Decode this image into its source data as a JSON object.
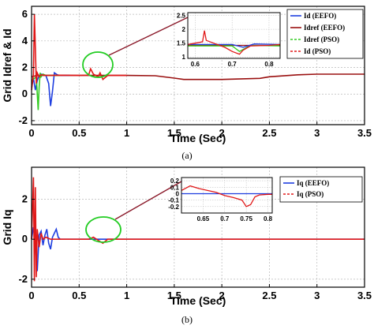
{
  "captions": {
    "a": "(a)",
    "b": "(b)"
  },
  "colors": {
    "blue": "#1f3fe0",
    "red": "#e01818",
    "darkred": "#9a1010",
    "green": "#33cc22",
    "grid": "#b8b8b8",
    "ellipse": "#22cc22",
    "callout": "#8b1a2a"
  },
  "chart_data": [
    {
      "type": "line",
      "ylabel": "Grid Idref & Id",
      "xlabel": "Time (Sec)",
      "xlim": [
        0,
        3.5
      ],
      "ylim": [
        -2.3,
        6.6
      ],
      "xticks": [
        "0",
        "0.5",
        "1",
        "1.5",
        "2",
        "2.5",
        "3",
        "3.5"
      ],
      "xtick_values": [
        0,
        0.5,
        1,
        1.5,
        2,
        2.5,
        3,
        3.5
      ],
      "yticks": [
        "-2",
        "0",
        "2",
        "4",
        "6"
      ],
      "ytick_values": [
        -2,
        0,
        2,
        4,
        6
      ],
      "grid": true,
      "legend_position": "top-right",
      "legend": [
        {
          "name": "Id (EEFO)",
          "color": "#1f3fe0",
          "dash": "solid"
        },
        {
          "name": "Idref (EEFO)",
          "color": "#9a1010",
          "dash": "solid"
        },
        {
          "name": "Idref (PSO)",
          "color": "#33cc22",
          "dash": "dashed"
        },
        {
          "name": "Id (PSO)",
          "color": "#e01818",
          "dash": "dashed"
        }
      ],
      "series": [
        {
          "name": "Idref (EEFO)",
          "color": "#9a1010",
          "x": [
            0,
            0.03,
            0.05,
            0.07,
            0.1,
            0.2,
            0.5,
            1.0,
            1.3,
            1.5,
            1.6,
            2.0,
            2.4,
            2.5,
            2.8,
            3.0,
            3.5
          ],
          "y": [
            1.3,
            1.35,
            1.4,
            1.4,
            1.4,
            1.4,
            1.4,
            1.4,
            1.38,
            1.2,
            1.1,
            1.1,
            1.18,
            1.3,
            1.45,
            1.5,
            1.5
          ]
        },
        {
          "name": "Id (EEFO)",
          "color": "#1f3fe0",
          "x": [
            0,
            0.02,
            0.04,
            0.06,
            0.08,
            0.1,
            0.15,
            0.18,
            0.2,
            0.22,
            0.24,
            0.27,
            0.3,
            0.35,
            0.4
          ],
          "y": [
            0.5,
            1.2,
            0.3,
            1.0,
            1.4,
            1.5,
            1.4,
            0.8,
            -0.9,
            0.2,
            1.6,
            1.45,
            1.4,
            1.42,
            1.4
          ]
        },
        {
          "name": "Idref (PSO)",
          "color": "#33cc22",
          "x": [
            0,
            0.05,
            0.07,
            0.08,
            0.09,
            0.1,
            0.12,
            0.15,
            0.2,
            0.3
          ],
          "y": [
            1.0,
            1.3,
            -1.2,
            0.5,
            1.6,
            1.3,
            1.5,
            1.4,
            1.4,
            1.4
          ]
        },
        {
          "name": "Id (PSO)",
          "color": "#e01818",
          "x": [
            0,
            0.02,
            0.03,
            0.04,
            0.05,
            0.06,
            0.08,
            0.1,
            0.15,
            0.2,
            0.3,
            0.5,
            0.6,
            0.62,
            0.65,
            0.7,
            0.72,
            0.75,
            0.8,
            1.0
          ],
          "y": [
            0.3,
            1.5,
            6.0,
            3.5,
            0.8,
            1.6,
            1.3,
            1.45,
            1.4,
            1.4,
            1.42,
            1.4,
            1.42,
            1.9,
            1.5,
            1.3,
            1.6,
            1.1,
            1.4,
            1.4
          ]
        }
      ],
      "inset": {
        "xlim": [
          0.58,
          0.83
        ],
        "ylim": [
          0.95,
          2.6
        ],
        "xticks": [
          "0.6",
          "0.7",
          "0.8"
        ],
        "xtick_values": [
          0.6,
          0.7,
          0.8
        ],
        "yticks": [
          "1",
          "1.5",
          "2",
          "2.5"
        ],
        "ytick_values": [
          1,
          1.5,
          2,
          2.5
        ],
        "series": [
          {
            "name": "Idref (EEFO)",
            "color": "#9a1010",
            "x": [
              0.58,
              0.83
            ],
            "y": [
              1.42,
              1.42
            ]
          },
          {
            "name": "Idref (PSO)",
            "color": "#33cc22",
            "x": [
              0.58,
              0.7,
              0.72,
              0.75,
              0.83
            ],
            "y": [
              1.4,
              1.4,
              1.2,
              1.42,
              1.4
            ]
          },
          {
            "name": "Id (EEFO)",
            "color": "#1f3fe0",
            "x": [
              0.58,
              0.7,
              0.73,
              0.76,
              0.83
            ],
            "y": [
              1.45,
              1.45,
              1.35,
              1.47,
              1.45
            ]
          },
          {
            "name": "Id (PSO)",
            "color": "#e01818",
            "x": [
              0.58,
              0.6,
              0.62,
              0.625,
              0.63,
              0.65,
              0.68,
              0.7,
              0.72,
              0.73,
              0.75,
              0.8,
              0.83
            ],
            "y": [
              1.45,
              1.5,
              1.55,
              1.95,
              1.6,
              1.5,
              1.35,
              1.2,
              1.1,
              1.25,
              1.4,
              1.42,
              1.45
            ]
          }
        ]
      }
    },
    {
      "type": "line",
      "ylabel": "Grid Iq",
      "xlabel": "Time (Sec)",
      "xlim": [
        0,
        3.5
      ],
      "ylim": [
        -2.4,
        3.6
      ],
      "xticks": [
        "0",
        "0.5",
        "1",
        "1.5",
        "2",
        "2.5",
        "3",
        "3.5"
      ],
      "xtick_values": [
        0,
        0.5,
        1,
        1.5,
        2,
        2.5,
        3,
        3.5
      ],
      "yticks": [
        "-2",
        "0",
        "2"
      ],
      "ytick_values": [
        -2,
        0,
        2
      ],
      "grid": true,
      "legend_position": "top-right",
      "legend": [
        {
          "name": "Iq (EEFO)",
          "color": "#1f3fe0",
          "dash": "solid"
        },
        {
          "name": "Iq (PSO)",
          "color": "#e01818",
          "dash": "dashed"
        }
      ],
      "series": [
        {
          "name": "Iq (EEFO)",
          "color": "#1f3fe0",
          "x": [
            0,
            0.02,
            0.04,
            0.06,
            0.08,
            0.1,
            0.12,
            0.14,
            0.16,
            0.18,
            0.2,
            0.22,
            0.24,
            0.26,
            0.28,
            0.3,
            0.35,
            3.5
          ],
          "y": [
            0,
            0.6,
            -0.3,
            -1.6,
            0.2,
            0.4,
            -0.3,
            0.2,
            0.5,
            -0.2,
            -0.5,
            0.1,
            0.3,
            0.5,
            0.1,
            0.0,
            0.0,
            0.0
          ]
        },
        {
          "name": "Iq (PSO)",
          "color": "#e01818",
          "x": [
            0,
            0.02,
            0.03,
            0.04,
            0.05,
            0.06,
            0.08,
            0.1,
            0.12,
            0.15,
            0.2,
            0.3,
            0.6,
            0.65,
            0.7,
            0.75,
            0.8,
            3.5
          ],
          "y": [
            0,
            3.1,
            -2.1,
            2.6,
            -1.9,
            0.5,
            -0.4,
            0.3,
            0.0,
            0.1,
            0.0,
            0.0,
            0.0,
            0.1,
            -0.05,
            -0.2,
            0.0,
            0.0
          ]
        }
      ],
      "inset": {
        "xlim": [
          0.6,
          0.81
        ],
        "ylim": [
          -0.3,
          0.25
        ],
        "xticks": [
          "0.65",
          "0.7",
          "0.75",
          "0.8"
        ],
        "xtick_values": [
          0.65,
          0.7,
          0.75,
          0.8
        ],
        "yticks": [
          "-0.2",
          "-0.1",
          "0",
          "0.1",
          "0.2"
        ],
        "ytick_values": [
          -0.2,
          -0.1,
          0,
          0.1,
          0.2
        ],
        "series": [
          {
            "name": "Iq (EEFO)",
            "color": "#1f3fe0",
            "x": [
              0.6,
              0.81
            ],
            "y": [
              0.0,
              0.0
            ]
          },
          {
            "name": "Iq (PSO)",
            "color": "#e01818",
            "x": [
              0.6,
              0.62,
              0.64,
              0.66,
              0.68,
              0.7,
              0.72,
              0.74,
              0.75,
              0.76,
              0.77,
              0.78,
              0.8,
              0.81
            ],
            "y": [
              0.05,
              0.12,
              0.08,
              0.05,
              0.02,
              -0.03,
              -0.06,
              -0.1,
              -0.2,
              -0.17,
              -0.05,
              -0.02,
              -0.01,
              -0.01
            ]
          }
        ]
      }
    }
  ]
}
